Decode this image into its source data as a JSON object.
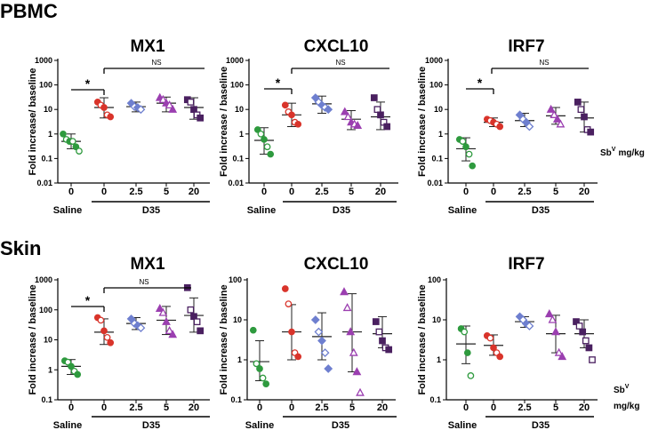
{
  "figure": {
    "sections": [
      {
        "id": "pbmc",
        "title": "PBMC"
      },
      {
        "id": "skin",
        "title": "Skin"
      }
    ],
    "dose_unit_label": "Sb",
    "dose_unit_superscript": "V",
    "dose_unit_suffix": "mg/kg",
    "dose_unit_suffix_top": "mg/kg",
    "group_saline_label": "Saline",
    "group_d35_label": "D35"
  },
  "chart_data": [
    {
      "type": "scatter",
      "section": "PBMC",
      "title": "MX1",
      "ylabel": "Fold increase/ baseline",
      "yscale": "log",
      "ylim": [
        0.01,
        1000
      ],
      "yticks": [
        "0.01",
        "0.1",
        "1",
        "10",
        "100",
        "1000"
      ],
      "categories": [
        "0",
        "0",
        "2.5",
        "5",
        "20"
      ],
      "groups": [
        "Saline",
        "D35",
        "D35",
        "D35",
        "D35"
      ],
      "series": [
        {
          "name": "Saline 0",
          "color": "#2e9a3e",
          "mean": 0.5,
          "sd_low": 0.25,
          "sd_high": 1.0,
          "points": [
            1.0,
            0.6,
            0.5,
            0.5,
            0.3,
            0.2
          ]
        },
        {
          "name": "D35 0",
          "color": "#d9342b",
          "mean": 12,
          "sd_low": 4.5,
          "sd_high": 30,
          "points": [
            20,
            15,
            12,
            6,
            5
          ]
        },
        {
          "name": "D35 2.5",
          "color": "#6e7fcf",
          "mean": 13,
          "sd_low": 8,
          "sd_high": 20,
          "points": [
            18,
            13,
            12,
            10
          ]
        },
        {
          "name": "D35 5",
          "color": "#9b3fb0",
          "mean": 18,
          "sd_low": 8,
          "sd_high": 32,
          "points": [
            30,
            25,
            18,
            15,
            10
          ]
        },
        {
          "name": "D35 20",
          "color": "#4a2060",
          "mean": 12,
          "sd_low": 4,
          "sd_high": 30,
          "points": [
            25,
            20,
            10,
            6,
            4.5
          ]
        }
      ],
      "significance": {
        "star": "*",
        "ns": "NS"
      }
    },
    {
      "type": "scatter",
      "section": "PBMC",
      "title": "CXCL10",
      "ylabel": "Fold increase / baseline",
      "yscale": "log",
      "ylim": [
        0.01,
        1000
      ],
      "yticks": [
        "0.01",
        "0.1",
        "1",
        "10",
        "100",
        "1000"
      ],
      "categories": [
        "0",
        "0",
        "2.5",
        "5",
        "20"
      ],
      "groups": [
        "Saline",
        "D35",
        "D35",
        "D35",
        "D35"
      ],
      "series": [
        {
          "name": "Saline 0",
          "color": "#2e9a3e",
          "mean": 0.55,
          "sd_low": 0.15,
          "sd_high": 1.8,
          "points": [
            1.5,
            1.0,
            0.6,
            0.3,
            0.15
          ]
        },
        {
          "name": "D35 0",
          "color": "#d9342b",
          "mean": 6,
          "sd_low": 2,
          "sd_high": 18,
          "points": [
            15,
            8,
            6,
            3,
            2.5
          ]
        },
        {
          "name": "D35 2.5",
          "color": "#6e7fcf",
          "mean": 17,
          "sd_low": 7,
          "sd_high": 35,
          "points": [
            30,
            20,
            15,
            12,
            10
          ]
        },
        {
          "name": "D35 5",
          "color": "#9b3fb0",
          "mean": 4,
          "sd_low": 1.5,
          "sd_high": 9,
          "points": [
            8,
            5,
            3,
            2.5,
            2.2
          ]
        },
        {
          "name": "D35 20",
          "color": "#4a2060",
          "mean": 5,
          "sd_low": 1.5,
          "sd_high": 20,
          "points": [
            30,
            10,
            6,
            3,
            2
          ]
        }
      ],
      "significance": {
        "star": "*",
        "ns": "NS"
      }
    },
    {
      "type": "scatter",
      "section": "PBMC",
      "title": "IRF7",
      "ylabel": "Fold increase / baseline",
      "yscale": "log",
      "ylim": [
        0.01,
        1000
      ],
      "yticks": [
        "0.01",
        "0.1",
        "1",
        "10",
        "100",
        "1000"
      ],
      "categories": [
        "0",
        "0",
        "2.5",
        "5",
        "20"
      ],
      "groups": [
        "Saline",
        "D35",
        "D35",
        "D35",
        "D35"
      ],
      "series": [
        {
          "name": "Saline 0",
          "color": "#2e9a3e",
          "mean": 0.25,
          "sd_low": 0.08,
          "sd_high": 0.7,
          "points": [
            0.6,
            0.5,
            0.3,
            0.15,
            0.05
          ]
        },
        {
          "name": "D35 0",
          "color": "#d9342b",
          "mean": 3,
          "sd_low": 2,
          "sd_high": 4.5,
          "points": [
            4,
            3.5,
            3,
            2.5,
            2
          ]
        },
        {
          "name": "D35 2.5",
          "color": "#6e7fcf",
          "mean": 3.5,
          "sd_low": 2,
          "sd_high": 7,
          "points": [
            6,
            4,
            3,
            2
          ]
        },
        {
          "name": "D35 5",
          "color": "#9b3fb0",
          "mean": 5.5,
          "sd_low": 2.5,
          "sd_high": 12,
          "points": [
            10,
            6,
            4,
            2.5
          ]
        },
        {
          "name": "D35 20",
          "color": "#4a2060",
          "mean": 4.5,
          "sd_low": 1.2,
          "sd_high": 20,
          "points": [
            20,
            10,
            5,
            1.5,
            1.2
          ]
        }
      ],
      "significance": {
        "star": "*",
        "ns": "NS"
      }
    },
    {
      "type": "scatter",
      "section": "Skin",
      "title": "MX1",
      "ylabel": "Fold increase / baseline",
      "yscale": "log",
      "ylim": [
        0.1,
        1000
      ],
      "yticks": [
        "0.1",
        "1",
        "10",
        "100",
        "1000"
      ],
      "categories": [
        "0",
        "0",
        "2.5",
        "5",
        "20"
      ],
      "groups": [
        "Saline",
        "D35",
        "D35",
        "D35",
        "D35"
      ],
      "series": [
        {
          "name": "Saline 0",
          "color": "#2e9a3e",
          "mean": 1.3,
          "sd_low": 0.7,
          "sd_high": 2.2,
          "points": [
            2.0,
            1.8,
            1.3,
            0.9,
            0.7
          ]
        },
        {
          "name": "D35 0",
          "color": "#d9342b",
          "mean": 18,
          "sd_low": 7,
          "sd_high": 50,
          "points": [
            55,
            45,
            20,
            12,
            8
          ]
        },
        {
          "name": "D35 2.5",
          "color": "#6e7fcf",
          "mean": 35,
          "sd_low": 22,
          "sd_high": 55,
          "points": [
            50,
            35,
            30,
            25
          ]
        },
        {
          "name": "D35 5",
          "color": "#9b3fb0",
          "mean": 45,
          "sd_low": 15,
          "sd_high": 130,
          "points": [
            110,
            80,
            40,
            20,
            15
          ]
        },
        {
          "name": "D35 20",
          "color": "#4a2060",
          "mean": 65,
          "sd_low": 18,
          "sd_high": 250,
          "points": [
            550,
            100,
            60,
            40,
            20
          ]
        }
      ],
      "significance": {
        "star": "*",
        "ns": "NS"
      }
    },
    {
      "type": "scatter",
      "section": "Skin",
      "title": "CXCL10",
      "ylabel": "Fold increase / baseline",
      "yscale": "log",
      "ylim": [
        0.1,
        100
      ],
      "yticks": [
        "0.1",
        "1",
        "10",
        "100"
      ],
      "categories": [
        "0",
        "0",
        "2.5",
        "5",
        "20"
      ],
      "groups": [
        "Saline",
        "D35",
        "D35",
        "D35",
        "D35"
      ],
      "series": [
        {
          "name": "Saline 0",
          "color": "#2e9a3e",
          "mean": 0.9,
          "sd_low": 0.3,
          "sd_high": 3.0,
          "points": [
            5.5,
            0.8,
            0.6,
            0.35,
            0.25
          ]
        },
        {
          "name": "D35 0",
          "color": "#d9342b",
          "mean": 5,
          "sd_low": 1.0,
          "sd_high": 24,
          "points": [
            60,
            25,
            5,
            1.5,
            1.2
          ]
        },
        {
          "name": "D35 2.5",
          "color": "#6e7fcf",
          "mean": 3.8,
          "sd_low": 1.0,
          "sd_high": 15,
          "points": [
            10,
            5,
            3,
            1.5,
            0.6
          ]
        },
        {
          "name": "D35 5",
          "color": "#9b3fb0",
          "mean": 5,
          "sd_low": 0.5,
          "sd_high": 45,
          "points": [
            50,
            20,
            5,
            1.5,
            0.5,
            0.15
          ]
        },
        {
          "name": "D35 20",
          "color": "#4a2060",
          "mean": 4.5,
          "sd_low": 2,
          "sd_high": 12,
          "points": [
            9,
            5,
            3,
            2,
            1.8
          ]
        }
      ],
      "significance": {}
    },
    {
      "type": "scatter",
      "section": "Skin",
      "title": "IRF7",
      "ylabel": "Fold increase / baseline",
      "yscale": "log",
      "ylim": [
        0.1,
        100
      ],
      "yticks": [
        "0.1",
        "1",
        "10",
        "100"
      ],
      "categories": [
        "0",
        "0",
        "2.5",
        "5",
        "20"
      ],
      "groups": [
        "Saline",
        "D35",
        "D35",
        "D35",
        "D35"
      ],
      "series": [
        {
          "name": "Saline 0",
          "color": "#2e9a3e",
          "mean": 2.5,
          "sd_low": 0.8,
          "sd_high": 7,
          "points": [
            6,
            5,
            1.5,
            0.4
          ]
        },
        {
          "name": "D35 0",
          "color": "#d9342b",
          "mean": 2.3,
          "sd_low": 1.3,
          "sd_high": 4.2,
          "points": [
            4,
            3.5,
            2,
            1.5,
            1.2
          ]
        },
        {
          "name": "D35 2.5",
          "color": "#6e7fcf",
          "mean": 9,
          "sd_low": 6.5,
          "sd_high": 12,
          "points": [
            12,
            10,
            8,
            7
          ]
        },
        {
          "name": "D35 5",
          "color": "#9b3fb0",
          "mean": 4.5,
          "sd_low": 1.5,
          "sd_high": 13,
          "points": [
            14,
            10,
            5,
            1.5,
            1.2
          ]
        },
        {
          "name": "D35 20",
          "color": "#4a2060",
          "mean": 4.5,
          "sd_low": 2,
          "sd_high": 10,
          "points": [
            9,
            7,
            5,
            3,
            2,
            1
          ]
        }
      ],
      "significance": {}
    }
  ]
}
